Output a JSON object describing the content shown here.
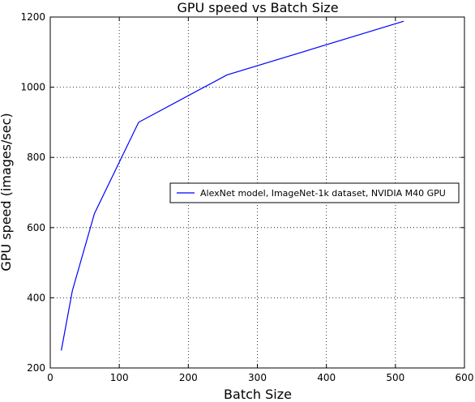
{
  "chart_data": {
    "type": "line",
    "title": "GPU speed vs Batch Size",
    "xlabel": "Batch Size",
    "ylabel": "GPU speed (images/sec)",
    "xlim": [
      0,
      600
    ],
    "ylim": [
      200,
      1200
    ],
    "xticks": [
      0,
      100,
      200,
      300,
      400,
      500,
      600
    ],
    "yticks": [
      200,
      400,
      600,
      800,
      1000,
      1200
    ],
    "grid": true,
    "legend_position": "center-right",
    "series": [
      {
        "name": "AlexNet model, ImageNet-1k dataset, NVIDIA M40 GPU",
        "color": "#0000ff",
        "x": [
          16,
          32,
          64,
          128,
          256,
          512
        ],
        "y": [
          250,
          420,
          640,
          900,
          1035,
          1188
        ]
      }
    ]
  }
}
